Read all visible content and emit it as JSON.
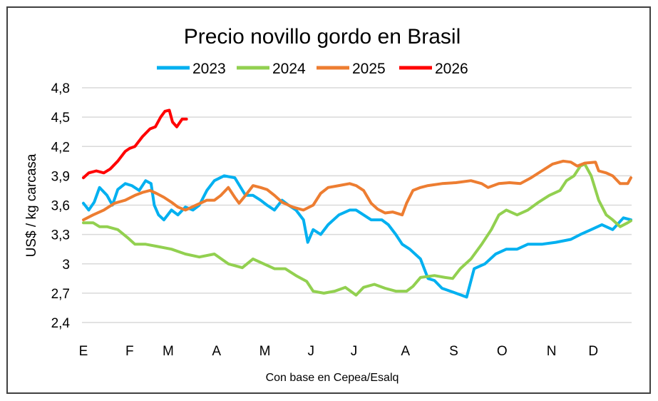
{
  "chart_data": {
    "type": "line",
    "title": "Precio novillo gordo en Brasil",
    "ylabel": "US$ / kg carcasa",
    "xlabel": "",
    "caption": "Con base en Cepea/Esalq",
    "ylim": [
      2.4,
      4.8
    ],
    "yticks": [
      "4,8",
      "4,5",
      "4,2",
      "3,9",
      "3,6",
      "3,3",
      "3",
      "2,7",
      "2,4"
    ],
    "ytick_values": [
      4.8,
      4.5,
      4.2,
      3.9,
      3.6,
      3.3,
      3.0,
      2.7,
      2.4
    ],
    "xlim": [
      1,
      52
    ],
    "xticks": [
      "E",
      "F",
      "M",
      "A",
      "M",
      "J",
      "J",
      "A",
      "S",
      "O",
      "N",
      "D"
    ],
    "xtick_weeks": [
      1,
      5.3,
      8.9,
      13.4,
      17.9,
      22.2,
      26.2,
      31,
      35.5,
      40,
      44.6,
      48.5
    ],
    "grid": true,
    "legend": "top",
    "series": [
      {
        "name": "2023",
        "color": "#00B0F0",
        "points": [
          [
            1,
            3.62
          ],
          [
            1.5,
            3.55
          ],
          [
            2,
            3.63
          ],
          [
            2.5,
            3.78
          ],
          [
            3.2,
            3.7
          ],
          [
            3.7,
            3.6
          ],
          [
            4.2,
            3.76
          ],
          [
            4.9,
            3.82
          ],
          [
            5.5,
            3.8
          ],
          [
            6.2,
            3.75
          ],
          [
            6.8,
            3.85
          ],
          [
            7.3,
            3.82
          ],
          [
            7.6,
            3.6
          ],
          [
            8,
            3.5
          ],
          [
            8.5,
            3.45
          ],
          [
            9.2,
            3.55
          ],
          [
            9.8,
            3.5
          ],
          [
            10.5,
            3.58
          ],
          [
            11.2,
            3.55
          ],
          [
            11.8,
            3.6
          ],
          [
            12.5,
            3.75
          ],
          [
            13.2,
            3.85
          ],
          [
            14.1,
            3.9
          ],
          [
            15.1,
            3.88
          ],
          [
            16.1,
            3.7
          ],
          [
            16.8,
            3.7
          ],
          [
            17.5,
            3.65
          ],
          [
            18.1,
            3.6
          ],
          [
            18.8,
            3.55
          ],
          [
            19.5,
            3.65
          ],
          [
            20.1,
            3.6
          ],
          [
            20.8,
            3.55
          ],
          [
            21.5,
            3.45
          ],
          [
            21.9,
            3.22
          ],
          [
            22.4,
            3.35
          ],
          [
            23.1,
            3.3
          ],
          [
            23.8,
            3.4
          ],
          [
            24.8,
            3.5
          ],
          [
            25.8,
            3.55
          ],
          [
            26.4,
            3.55
          ],
          [
            27.1,
            3.5
          ],
          [
            27.8,
            3.45
          ],
          [
            28.8,
            3.45
          ],
          [
            29.4,
            3.4
          ],
          [
            30.1,
            3.3
          ],
          [
            30.7,
            3.2
          ],
          [
            31.4,
            3.15
          ],
          [
            32.4,
            3.05
          ],
          [
            33.1,
            2.85
          ],
          [
            33.7,
            2.83
          ],
          [
            34.4,
            2.75
          ],
          [
            35.7,
            2.7
          ],
          [
            36.7,
            2.66
          ],
          [
            37.4,
            2.95
          ],
          [
            38.4,
            3.0
          ],
          [
            39.4,
            3.1
          ],
          [
            40.4,
            3.15
          ],
          [
            41.4,
            3.15
          ],
          [
            42.4,
            3.2
          ],
          [
            43.7,
            3.2
          ],
          [
            45,
            3.22
          ],
          [
            46.4,
            3.25
          ],
          [
            47.3,
            3.3
          ],
          [
            48.3,
            3.35
          ],
          [
            49.3,
            3.4
          ],
          [
            50.3,
            3.35
          ],
          [
            51.3,
            3.47
          ],
          [
            52,
            3.45
          ]
        ]
      },
      {
        "name": "2024",
        "color": "#92D050",
        "points": [
          [
            1,
            3.42
          ],
          [
            1.9,
            3.42
          ],
          [
            2.5,
            3.38
          ],
          [
            3.2,
            3.38
          ],
          [
            4.2,
            3.35
          ],
          [
            5.2,
            3.26
          ],
          [
            5.8,
            3.2
          ],
          [
            6.8,
            3.2
          ],
          [
            7.8,
            3.18
          ],
          [
            9.2,
            3.15
          ],
          [
            10.5,
            3.1
          ],
          [
            11.8,
            3.07
          ],
          [
            13.2,
            3.1
          ],
          [
            14.5,
            3.0
          ],
          [
            15.8,
            2.96
          ],
          [
            16.8,
            3.05
          ],
          [
            17.8,
            3.0
          ],
          [
            18.8,
            2.95
          ],
          [
            19.8,
            2.95
          ],
          [
            20.8,
            2.88
          ],
          [
            21.8,
            2.82
          ],
          [
            22.4,
            2.72
          ],
          [
            23.4,
            2.7
          ],
          [
            24.4,
            2.72
          ],
          [
            25.4,
            2.76
          ],
          [
            26.4,
            2.68
          ],
          [
            27.1,
            2.76
          ],
          [
            28.1,
            2.79
          ],
          [
            29.1,
            2.75
          ],
          [
            30.1,
            2.72
          ],
          [
            31.1,
            2.72
          ],
          [
            31.7,
            2.77
          ],
          [
            32.4,
            2.86
          ],
          [
            33.7,
            2.88
          ],
          [
            34.7,
            2.86
          ],
          [
            35.4,
            2.85
          ],
          [
            36.1,
            2.95
          ],
          [
            37.1,
            3.05
          ],
          [
            38.1,
            3.2
          ],
          [
            39,
            3.35
          ],
          [
            39.7,
            3.5
          ],
          [
            40.4,
            3.55
          ],
          [
            41.4,
            3.5
          ],
          [
            42.4,
            3.55
          ],
          [
            43.4,
            3.63
          ],
          [
            44.4,
            3.7
          ],
          [
            45.4,
            3.75
          ],
          [
            46,
            3.85
          ],
          [
            46.7,
            3.9
          ],
          [
            47.3,
            4.0
          ],
          [
            47.7,
            4.02
          ],
          [
            48.3,
            3.9
          ],
          [
            49,
            3.65
          ],
          [
            49.7,
            3.5
          ],
          [
            50.3,
            3.45
          ],
          [
            51,
            3.38
          ],
          [
            51.7,
            3.42
          ],
          [
            52,
            3.44
          ]
        ]
      },
      {
        "name": "2025",
        "color": "#ED7D31",
        "points": [
          [
            1,
            3.45
          ],
          [
            1.9,
            3.5
          ],
          [
            2.9,
            3.55
          ],
          [
            3.9,
            3.62
          ],
          [
            4.9,
            3.65
          ],
          [
            5.8,
            3.7
          ],
          [
            6.5,
            3.73
          ],
          [
            7.2,
            3.75
          ],
          [
            7.8,
            3.72
          ],
          [
            8.5,
            3.68
          ],
          [
            9.2,
            3.63
          ],
          [
            9.8,
            3.58
          ],
          [
            10.5,
            3.55
          ],
          [
            11.5,
            3.6
          ],
          [
            12.5,
            3.65
          ],
          [
            13.2,
            3.65
          ],
          [
            13.8,
            3.7
          ],
          [
            14.5,
            3.78
          ],
          [
            15.1,
            3.68
          ],
          [
            15.5,
            3.62
          ],
          [
            16.1,
            3.7
          ],
          [
            16.8,
            3.8
          ],
          [
            17.5,
            3.78
          ],
          [
            18.1,
            3.76
          ],
          [
            18.8,
            3.7
          ],
          [
            19.5,
            3.63
          ],
          [
            20.5,
            3.58
          ],
          [
            21.5,
            3.55
          ],
          [
            22.4,
            3.6
          ],
          [
            23.1,
            3.72
          ],
          [
            23.8,
            3.78
          ],
          [
            24.8,
            3.8
          ],
          [
            25.8,
            3.82
          ],
          [
            26.4,
            3.8
          ],
          [
            27.1,
            3.75
          ],
          [
            27.8,
            3.62
          ],
          [
            28.4,
            3.56
          ],
          [
            29.1,
            3.52
          ],
          [
            29.8,
            3.53
          ],
          [
            30.7,
            3.5
          ],
          [
            31.1,
            3.62
          ],
          [
            31.7,
            3.75
          ],
          [
            32.4,
            3.78
          ],
          [
            33.1,
            3.8
          ],
          [
            34.4,
            3.82
          ],
          [
            35.7,
            3.83
          ],
          [
            37.1,
            3.85
          ],
          [
            38.1,
            3.82
          ],
          [
            38.7,
            3.78
          ],
          [
            39.7,
            3.82
          ],
          [
            40.7,
            3.83
          ],
          [
            41.7,
            3.82
          ],
          [
            42.7,
            3.88
          ],
          [
            43.7,
            3.95
          ],
          [
            44.7,
            4.02
          ],
          [
            45.7,
            4.05
          ],
          [
            46.4,
            4.04
          ],
          [
            47,
            4.0
          ],
          [
            47.7,
            4.03
          ],
          [
            48.7,
            4.04
          ],
          [
            49,
            3.95
          ],
          [
            49.7,
            3.93
          ],
          [
            50.3,
            3.9
          ],
          [
            51,
            3.82
          ],
          [
            51.7,
            3.82
          ],
          [
            52,
            3.88
          ]
        ]
      },
      {
        "name": "2026",
        "color": "#FF0000",
        "points": [
          [
            1,
            3.88
          ],
          [
            1.5,
            3.93
          ],
          [
            2.2,
            3.95
          ],
          [
            2.9,
            3.93
          ],
          [
            3.5,
            3.97
          ],
          [
            4.2,
            4.05
          ],
          [
            4.9,
            4.15
          ],
          [
            5.3,
            4.18
          ],
          [
            5.8,
            4.2
          ],
          [
            6.5,
            4.3
          ],
          [
            7.2,
            4.38
          ],
          [
            7.7,
            4.4
          ],
          [
            8.2,
            4.5
          ],
          [
            8.6,
            4.56
          ],
          [
            9,
            4.57
          ],
          [
            9.3,
            4.45
          ],
          [
            9.7,
            4.4
          ],
          [
            10.2,
            4.48
          ],
          [
            10.6,
            4.48
          ]
        ]
      }
    ]
  }
}
